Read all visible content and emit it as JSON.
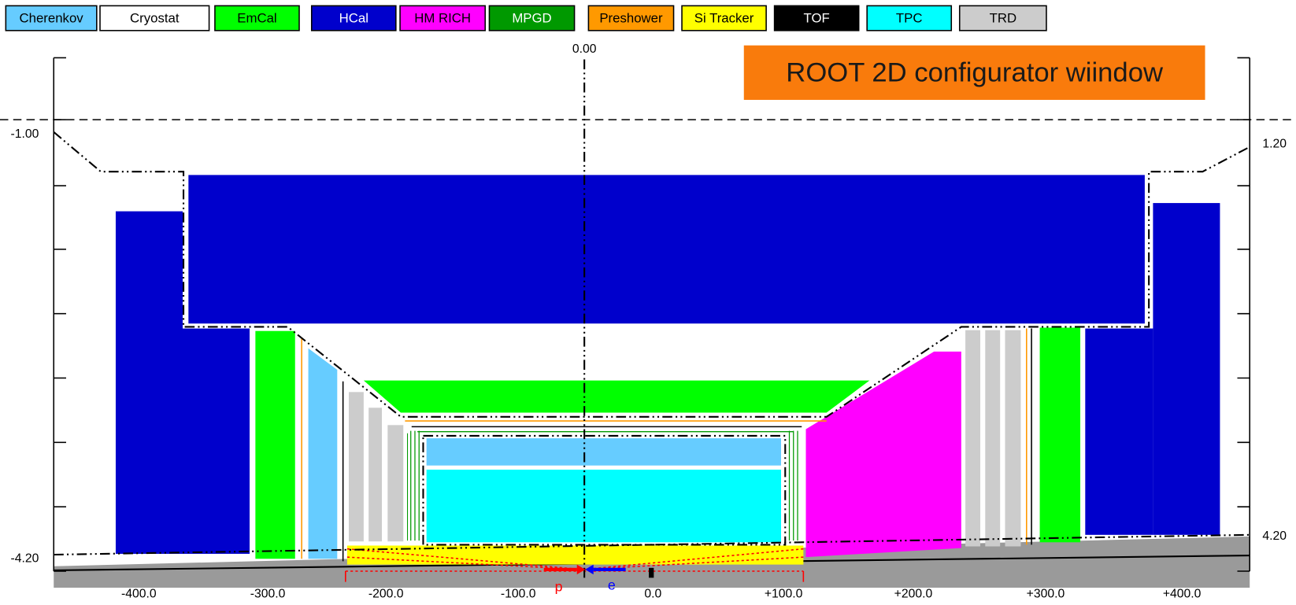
{
  "legend": {
    "items": [
      {
        "label": "Cherenkov",
        "color": "#66ccff"
      },
      {
        "label": "Cryostat",
        "color": "#ffffff"
      },
      {
        "label": "EmCal",
        "color": "#00ff00"
      },
      {
        "label": "HCal",
        "color": "#0000cc"
      },
      {
        "label": "HM RICH",
        "color": "#ff00ff"
      },
      {
        "label": "MPGD",
        "color": "#009900"
      },
      {
        "label": "Preshower",
        "color": "#ff9900"
      },
      {
        "label": "Si Tracker",
        "color": "#ffff00"
      },
      {
        "label": "TOF",
        "color": "#000000"
      },
      {
        "label": "TPC",
        "color": "#00ffff"
      },
      {
        "label": "TRD",
        "color": "#cccccc"
      }
    ]
  },
  "annotation": "ROOT 2D configurator wiindow",
  "axis": {
    "top_label": "0.00",
    "left_labels": [
      "-1.00",
      "-4.20"
    ],
    "right_labels": [
      "1.20",
      "4.20"
    ],
    "x_labels": [
      "-400.0",
      "-300.0",
      "-200.0",
      "-100.0",
      "0.0",
      "+100.0",
      "+200.0",
      "+300.0",
      "+400.0"
    ]
  },
  "beams": {
    "proton": "p",
    "electron": "e"
  }
}
